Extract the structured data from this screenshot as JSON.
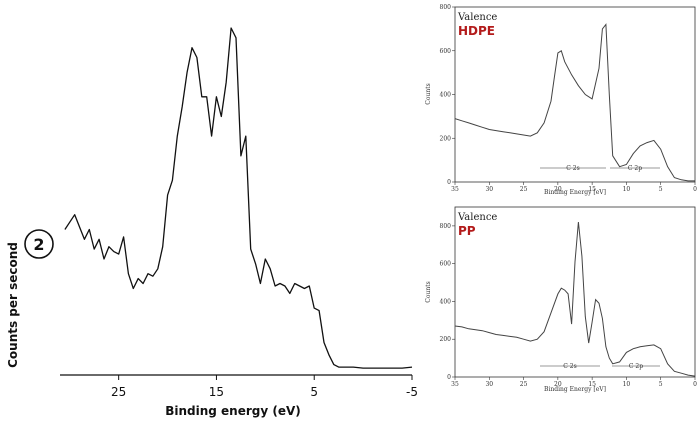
{
  "colors": {
    "main_line": "#111111",
    "inset_line": "#444444",
    "polymer_label": "#b31b1b"
  },
  "chart_data": [
    {
      "type": "line",
      "marker": "2",
      "xlabel": "Binding energy (eV)",
      "ylabel": "Counts per second",
      "xlim": [
        31,
        -5
      ],
      "x_reversed": true,
      "ylim": [
        0,
        700
      ],
      "y_ticks_shown": false,
      "x_ticks": [
        25,
        15,
        5,
        -5
      ],
      "x_tick_labels": [
        "25",
        "15",
        "5",
        "-5"
      ],
      "series": [
        {
          "x": [
            30.5,
            29.5,
            28.5,
            28,
            27.5,
            27,
            26.5,
            26,
            25.5,
            25,
            24.5,
            24,
            23.5,
            23,
            22.5,
            22,
            21.5,
            21,
            20.5,
            20,
            19.5,
            19,
            18.5,
            18,
            17.5,
            17,
            16.5,
            16,
            15.5,
            15,
            14.5,
            14,
            13.5,
            13,
            12.5,
            12,
            11.5,
            11,
            10.5,
            10,
            9.5,
            9,
            8.5,
            8,
            7.5,
            7,
            6.5,
            6,
            5.5,
            5,
            4.5,
            4,
            3.5,
            3,
            2.5,
            2,
            1.5,
            1,
            0,
            -1,
            -2,
            -3,
            -4,
            -5
          ],
          "y": [
            290,
            320,
            270,
            290,
            250,
            270,
            230,
            255,
            245,
            240,
            275,
            200,
            170,
            190,
            180,
            200,
            195,
            210,
            255,
            360,
            390,
            480,
            540,
            610,
            660,
            640,
            560,
            560,
            480,
            560,
            520,
            590,
            700,
            680,
            440,
            480,
            250,
            220,
            180,
            230,
            210,
            175,
            180,
            175,
            160,
            180,
            175,
            170,
            175,
            130,
            125,
            60,
            35,
            15,
            10,
            10,
            10,
            10,
            8,
            8,
            8,
            8,
            8,
            10
          ]
        }
      ]
    },
    {
      "type": "line",
      "title": "Valence",
      "name": "HDPE",
      "xlabel": "Binding Energy [eV]",
      "ylabel": "Counts",
      "xlim": [
        35,
        0
      ],
      "x_reversed": true,
      "ylim": [
        0,
        800
      ],
      "x_ticks": [
        35,
        30,
        25,
        20,
        15,
        10,
        5,
        0
      ],
      "y_ticks": [
        0,
        200,
        400,
        600,
        800
      ],
      "annotations": [
        "C 2s",
        "C 2p"
      ],
      "series": [
        {
          "x": [
            35,
            34,
            33,
            32,
            31,
            30,
            29,
            28,
            27,
            26,
            25,
            24,
            23,
            22,
            21,
            20.5,
            20,
            19.5,
            19,
            18,
            17,
            16,
            15,
            14,
            13.5,
            13,
            12.5,
            12,
            11,
            10,
            9,
            8,
            7,
            6,
            5,
            4,
            3,
            2,
            1,
            0
          ],
          "y": [
            290,
            280,
            270,
            260,
            250,
            240,
            235,
            230,
            225,
            220,
            215,
            210,
            225,
            270,
            370,
            480,
            590,
            600,
            550,
            490,
            440,
            400,
            380,
            520,
            700,
            720,
            400,
            120,
            70,
            80,
            130,
            165,
            180,
            190,
            150,
            70,
            20,
            10,
            5,
            5
          ]
        }
      ]
    },
    {
      "type": "line",
      "title": "Valence",
      "name": "PP",
      "xlabel": "Binding Energy [eV]",
      "ylabel": "Counts",
      "xlim": [
        35,
        0
      ],
      "x_reversed": true,
      "ylim": [
        0,
        900
      ],
      "x_ticks": [
        35,
        30,
        25,
        20,
        15,
        10,
        5,
        0
      ],
      "y_ticks": [
        0,
        200,
        400,
        600,
        800
      ],
      "annotations": [
        "C 2s",
        "C 2p"
      ],
      "series": [
        {
          "x": [
            35,
            34,
            33,
            32,
            31,
            30,
            29,
            28,
            27,
            26,
            25,
            24,
            23,
            22,
            21,
            20,
            19.5,
            19,
            18.5,
            18,
            17.5,
            17,
            16.5,
            16,
            15.5,
            15,
            14.5,
            14,
            13.5,
            13,
            12.5,
            12,
            11,
            10,
            9,
            8,
            7,
            6,
            5,
            4,
            3,
            2,
            1,
            0
          ],
          "y": [
            270,
            265,
            255,
            250,
            245,
            235,
            225,
            220,
            215,
            210,
            200,
            190,
            200,
            240,
            340,
            440,
            470,
            460,
            440,
            280,
            610,
            820,
            640,
            320,
            180,
            290,
            410,
            390,
            310,
            160,
            100,
            70,
            80,
            130,
            150,
            160,
            165,
            170,
            150,
            70,
            30,
            20,
            10,
            5
          ]
        }
      ]
    }
  ]
}
